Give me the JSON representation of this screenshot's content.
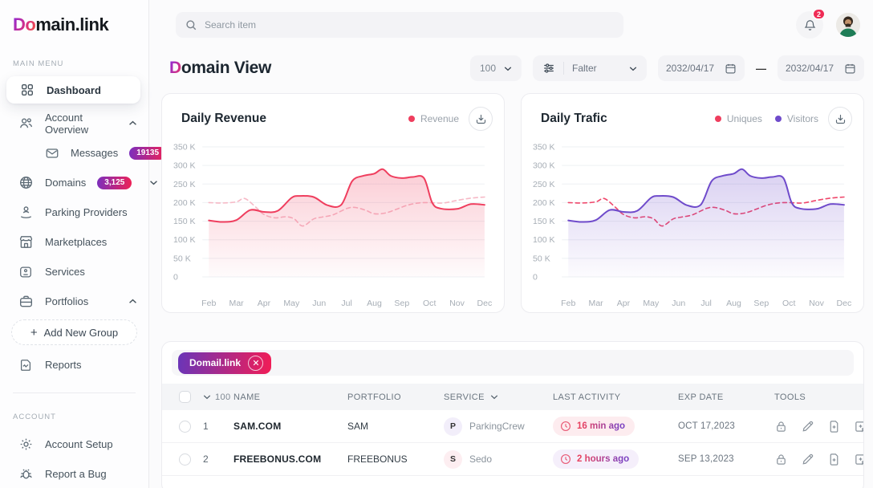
{
  "brand": {
    "logo_accent": "Do",
    "logo_rest": "main.link"
  },
  "topbar": {
    "search_placeholder": "Search item",
    "notification_count": "2"
  },
  "sidebar": {
    "main_menu_label": "MAIN MENU",
    "account_label": "ACCOUNT",
    "dashboard": "Dashboard",
    "account_overview": "Account Overview",
    "messages": "Messages",
    "messages_badge": "19135",
    "domains": "Domains",
    "domains_badge": "3,125",
    "parking_providers": "Parking Providers",
    "marketplaces": "Marketplaces",
    "services": "Services",
    "portfolios": "Portfolios",
    "add_new_group_plus": "+",
    "add_new_group": "Add New Group",
    "reports": "Reports",
    "account_setup": "Account Setup",
    "report_a_bug": "Report a Bug"
  },
  "header": {
    "title_accent": "D",
    "title_rest": "omain View"
  },
  "filters": {
    "page_size": "100",
    "filter_label": "Falter",
    "date_from": "2032/04/17",
    "date_separator": "—",
    "date_to": "2032/04/17"
  },
  "chart_data": [
    {
      "type": "area",
      "title": "Daily Revenue",
      "ylim": [
        0,
        350
      ],
      "y_ticks": [
        "350 K",
        "300 K",
        "250 K",
        "200 K",
        "150 K",
        "100 K",
        "50 K",
        "0"
      ],
      "x_labels": [
        "Feb",
        "Mar",
        "Apr",
        "May",
        "Jun",
        "Jul",
        "Aug",
        "Sep",
        "Oct",
        "Nov",
        "Dec"
      ],
      "legend": [
        {
          "label": "Revenue",
          "color": "#ef3e5e"
        }
      ],
      "series": [
        {
          "name": "revenue-trend-dashed",
          "style": "dashed",
          "color": "#f6b9c6",
          "area": false,
          "points": [
            [
              0,
              200
            ],
            [
              0.5,
              199
            ],
            [
              1,
              202
            ],
            [
              1.3,
              211
            ],
            [
              1.7,
              188
            ],
            [
              2,
              168
            ],
            [
              2.4,
              159
            ],
            [
              2.8,
              162
            ],
            [
              3.1,
              156
            ],
            [
              3.4,
              137
            ],
            [
              3.8,
              156
            ],
            [
              4.1,
              161
            ],
            [
              4.5,
              167
            ],
            [
              5,
              184
            ],
            [
              5.3,
              187
            ],
            [
              5.7,
              179
            ],
            [
              6,
              170
            ],
            [
              6.4,
              172
            ],
            [
              6.8,
              182
            ],
            [
              7.2,
              193
            ],
            [
              7.6,
              199
            ],
            [
              8,
              200
            ],
            [
              8.5,
              199
            ],
            [
              9,
              206
            ],
            [
              9.5,
              212
            ],
            [
              10,
              215
            ]
          ]
        },
        {
          "name": "revenue",
          "style": "solid",
          "color": "#ef3e5e",
          "area": true,
          "points": [
            [
              0,
              152
            ],
            [
              0.5,
              148
            ],
            [
              1,
              153
            ],
            [
              1.5,
              180
            ],
            [
              2,
              175
            ],
            [
              2.5,
              178
            ],
            [
              3,
              213
            ],
            [
              3.3,
              218
            ],
            [
              3.8,
              215
            ],
            [
              4.3,
              193
            ],
            [
              4.8,
              194
            ],
            [
              5.2,
              258
            ],
            [
              5.6,
              272
            ],
            [
              6,
              278
            ],
            [
              6.3,
              290
            ],
            [
              6.6,
              272
            ],
            [
              7,
              266
            ],
            [
              7.4,
              269
            ],
            [
              7.8,
              266
            ],
            [
              8.1,
              200
            ],
            [
              8.4,
              184
            ],
            [
              9,
              183
            ],
            [
              9.5,
              196
            ],
            [
              10,
              194
            ]
          ]
        }
      ]
    },
    {
      "type": "area",
      "title": "Daily Trafic",
      "ylim": [
        0,
        350
      ],
      "y_ticks": [
        "350 K",
        "300 K",
        "250 K",
        "200 K",
        "150 K",
        "100 K",
        "50 K",
        "0"
      ],
      "x_labels": [
        "Feb",
        "Mar",
        "Apr",
        "May",
        "Jun",
        "Jul",
        "Aug",
        "Sep",
        "Oct",
        "Nov",
        "Dec"
      ],
      "legend": [
        {
          "label": "Uniques",
          "color": "#ef3e5e"
        },
        {
          "label": "Visitors",
          "color": "#6f4bcb"
        }
      ],
      "series": [
        {
          "name": "uniques",
          "style": "dashed",
          "color": "#ef476b",
          "area": false,
          "points": [
            [
              0,
              200
            ],
            [
              0.5,
              199
            ],
            [
              1,
              202
            ],
            [
              1.3,
              211
            ],
            [
              1.7,
              188
            ],
            [
              2,
              168
            ],
            [
              2.4,
              159
            ],
            [
              2.8,
              162
            ],
            [
              3.1,
              156
            ],
            [
              3.4,
              137
            ],
            [
              3.8,
              156
            ],
            [
              4.1,
              161
            ],
            [
              4.5,
              167
            ],
            [
              5,
              184
            ],
            [
              5.3,
              187
            ],
            [
              5.7,
              179
            ],
            [
              6,
              170
            ],
            [
              6.4,
              172
            ],
            [
              6.8,
              182
            ],
            [
              7.2,
              193
            ],
            [
              7.6,
              199
            ],
            [
              8,
              200
            ],
            [
              8.5,
              199
            ],
            [
              9,
              206
            ],
            [
              9.5,
              212
            ],
            [
              10,
              215
            ]
          ]
        },
        {
          "name": "visitors",
          "style": "solid",
          "color": "#6f4bcb",
          "area": true,
          "points": [
            [
              0,
              152
            ],
            [
              0.5,
              148
            ],
            [
              1,
              153
            ],
            [
              1.5,
              180
            ],
            [
              2,
              175
            ],
            [
              2.5,
              178
            ],
            [
              3,
              213
            ],
            [
              3.3,
              218
            ],
            [
              3.8,
              215
            ],
            [
              4.3,
              193
            ],
            [
              4.8,
              194
            ],
            [
              5.2,
              258
            ],
            [
              5.6,
              272
            ],
            [
              6,
              278
            ],
            [
              6.3,
              290
            ],
            [
              6.6,
              272
            ],
            [
              7,
              266
            ],
            [
              7.4,
              269
            ],
            [
              7.8,
              266
            ],
            [
              8.1,
              200
            ],
            [
              8.4,
              184
            ],
            [
              9,
              183
            ],
            [
              9.5,
              196
            ],
            [
              10,
              194
            ]
          ]
        }
      ]
    }
  ],
  "table": {
    "chip_label": "Domail.link",
    "header": {
      "count": "100",
      "name": "NAME",
      "portfolio": "PORTFOLIO",
      "service": "SERVICE",
      "last_activity": "LAST ACTIVITY",
      "exp_date": "EXP DATE",
      "tools": "TOOLS"
    },
    "rows": [
      {
        "num": "1",
        "name": "SAM.COM",
        "portfolio": "SAM",
        "service_initial": "P",
        "service": "ParkingCrew",
        "activity": "16 min ago",
        "exp": "OCT 17,2023",
        "service_tint": "svc-purple",
        "activity_tint": "tint-pink"
      },
      {
        "num": "2",
        "name": "FREEBONUS.COM",
        "portfolio": "FREEBONUS",
        "service_initial": "S",
        "service": "Sedo",
        "activity": "2 hours ago",
        "exp": "SEP 13,2023",
        "service_tint": "svc-pink",
        "activity_tint": "tint-purple"
      }
    ],
    "tool_icons": [
      "lock",
      "edit",
      "file-plus",
      "note-plus"
    ]
  }
}
